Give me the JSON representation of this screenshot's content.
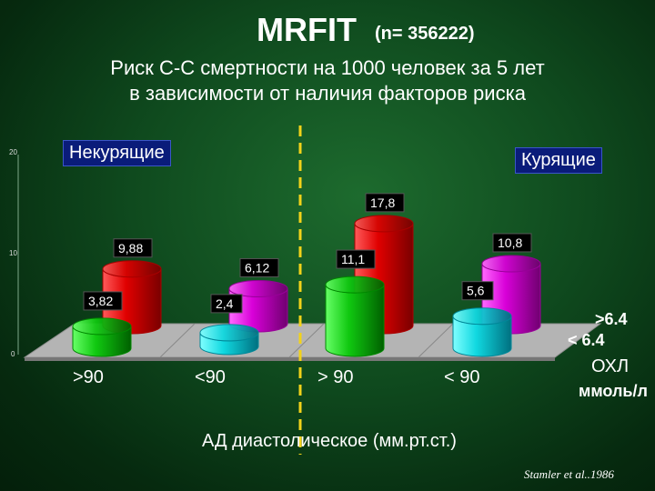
{
  "title": "MRFIT",
  "title_n": "(n= 356222)",
  "subtitle_line1": "Риск С-С смертности  на  1000  человек  за 5 лет",
  "subtitle_line2": "в зависимости от наличия  факторов  риска",
  "xlabel": "АД диастолическое (мм.рт.ст.)",
  "credit": "Stamler et al..1986",
  "chart_data": {
    "type": "bar",
    "title": "MRFIT",
    "groups": [
      "Некурящие",
      "Курящие"
    ],
    "categories": [
      ">90",
      "<90",
      "> 90",
      "< 90"
    ],
    "series_axis_label": "ОХЛ",
    "series_axis_unit": "ммоль/л",
    "series": [
      {
        "name": ">6.4",
        "values": [
          9.88,
          6.12,
          17.8,
          10.8
        ]
      },
      {
        "name": "< 6.4",
        "values": [
          3.82,
          2.4,
          11.1,
          5.6
        ]
      }
    ],
    "yticks": [
      "0",
      "10",
      "20"
    ],
    "ylim": [
      0,
      20
    ],
    "colors": {
      "nonsmoker_hi": "#e00000",
      "nonsmoker_lo": "#00c000",
      "nonsmoker_hi2": "#e000e0",
      "nonsmoker_lo2": "#00e0e0"
    }
  }
}
